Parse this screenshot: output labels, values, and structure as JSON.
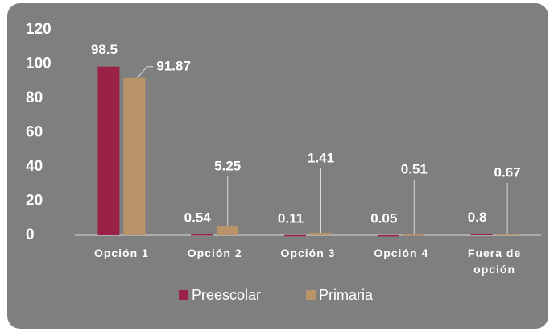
{
  "chart_data": {
    "type": "bar",
    "categories": [
      "Opción 1",
      "Opción 2",
      "Opción 3",
      "Opción 4",
      "Fuera de opción"
    ],
    "series": [
      {
        "name": "Preescolar",
        "color": "#9b2247",
        "values": [
          98.5,
          0.54,
          0.11,
          0.05,
          0.8
        ]
      },
      {
        "name": "Primaria",
        "color": "#b99469",
        "values": [
          91.87,
          5.25,
          1.41,
          0.51,
          0.67
        ]
      }
    ],
    "ylim": [
      0,
      120
    ],
    "yticks": [
      0,
      20,
      40,
      60,
      80,
      100,
      120
    ],
    "grid": false,
    "legend": "bottom"
  }
}
